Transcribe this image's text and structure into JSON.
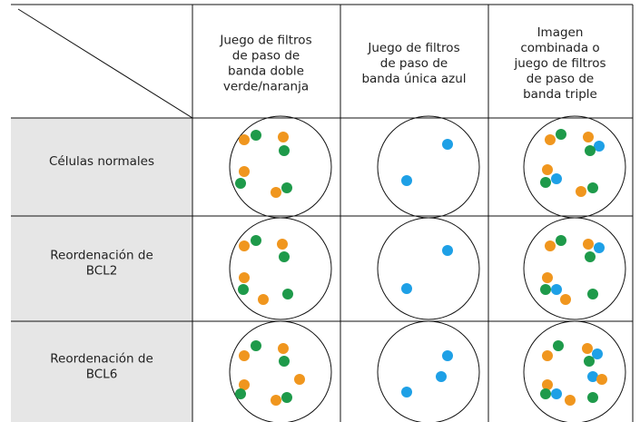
{
  "table": {
    "columns": [
      [
        "Juego de filtros",
        "de paso de",
        "banda doble",
        "verde/naranja"
      ],
      [
        "Juego de filtros",
        "de paso de",
        "banda única azul"
      ],
      [
        "Imagen",
        "combinada o",
        "juego de filtros",
        "de paso de",
        "banda triple"
      ]
    ],
    "rows": [
      [
        "Células normales"
      ],
      [
        "Reordenación de",
        "BCL2"
      ],
      [
        "Reordenación de",
        "BCL6"
      ]
    ]
  }
}
